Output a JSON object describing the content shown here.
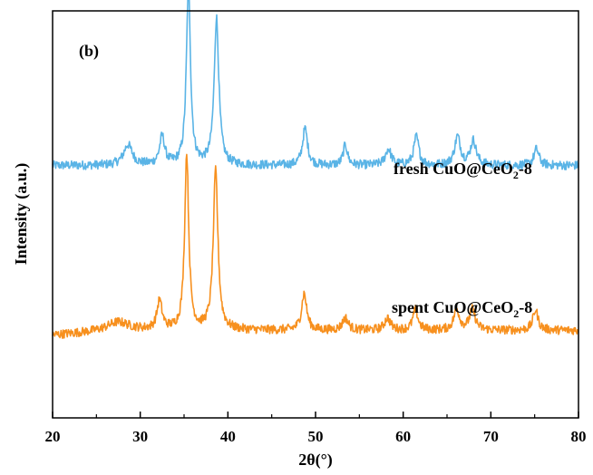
{
  "chart_data": {
    "type": "line",
    "panel_label": "(b)",
    "xlabel": "2θ(°)",
    "ylabel": "Intensity (a.u.)",
    "xlim": [
      20,
      80
    ],
    "xticks": [
      20,
      30,
      40,
      50,
      60,
      70,
      80
    ],
    "y_ticks_labeled": false,
    "legend_position": "none",
    "series": [
      {
        "name": "fresh CuO@CeO2-8",
        "label_main": "fresh CuO@CeO",
        "label_sub": "2",
        "label_tail": "-8",
        "color": "#5ab4e6",
        "baseline": 0.62,
        "peaks": [
          {
            "x": 28.6,
            "h": 0.05,
            "w": 0.6
          },
          {
            "x": 32.5,
            "h": 0.07,
            "w": 0.35
          },
          {
            "x": 35.5,
            "h": 0.44,
            "w": 0.28
          },
          {
            "x": 38.7,
            "h": 0.36,
            "w": 0.32
          },
          {
            "x": 48.8,
            "h": 0.09,
            "w": 0.35
          },
          {
            "x": 53.4,
            "h": 0.05,
            "w": 0.3
          },
          {
            "x": 58.3,
            "h": 0.04,
            "w": 0.4
          },
          {
            "x": 61.5,
            "h": 0.07,
            "w": 0.35
          },
          {
            "x": 66.2,
            "h": 0.07,
            "w": 0.4
          },
          {
            "x": 68.0,
            "h": 0.06,
            "w": 0.4
          },
          {
            "x": 75.2,
            "h": 0.04,
            "w": 0.35
          }
        ]
      },
      {
        "name": "spent CuO@CeO2-8",
        "label_main": "spent CuO@CeO",
        "label_sub": "2",
        "label_tail": "-8",
        "color": "#f7901e",
        "baseline": 0.215,
        "peaks": [
          {
            "x": 27.5,
            "h": 0.02,
            "w": 1.5
          },
          {
            "x": 32.2,
            "h": 0.07,
            "w": 0.35
          },
          {
            "x": 35.3,
            "h": 0.43,
            "w": 0.28
          },
          {
            "x": 38.6,
            "h": 0.39,
            "w": 0.32
          },
          {
            "x": 48.7,
            "h": 0.09,
            "w": 0.35
          },
          {
            "x": 53.4,
            "h": 0.03,
            "w": 0.4
          },
          {
            "x": 58.2,
            "h": 0.03,
            "w": 0.4
          },
          {
            "x": 61.4,
            "h": 0.05,
            "w": 0.35
          },
          {
            "x": 66.1,
            "h": 0.05,
            "w": 0.4
          },
          {
            "x": 67.9,
            "h": 0.05,
            "w": 0.4
          },
          {
            "x": 75.1,
            "h": 0.05,
            "w": 0.35
          }
        ]
      }
    ]
  }
}
